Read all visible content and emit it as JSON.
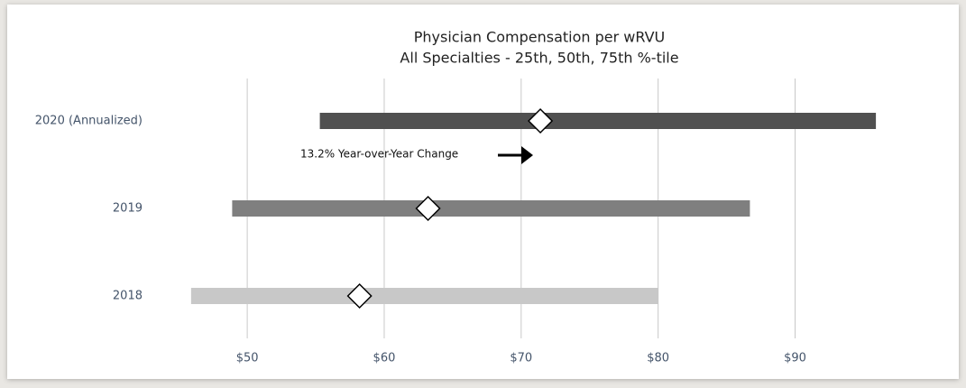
{
  "chart_data": {
    "type": "range_bar",
    "title": [
      "Physician Compensation per wRVU",
      "All Specialties - 25th, 50th, 75th %-tile"
    ],
    "categories": [
      "2020 (Annualized)",
      "2019",
      "2018"
    ],
    "low": [
      55.3,
      48.9,
      45.9
    ],
    "median": [
      71.4,
      63.2,
      58.2
    ],
    "high": [
      95.9,
      86.7,
      80.0
    ],
    "colors": [
      "#505050",
      "#7f7f7f",
      "#c8c8c8"
    ],
    "xlim": [
      44,
      98
    ],
    "xticks": [
      {
        "value": 50,
        "label": "$50"
      },
      {
        "value": 60,
        "label": "$60"
      },
      {
        "value": 70,
        "label": "$70"
      },
      {
        "value": 80,
        "label": "$80"
      },
      {
        "value": 90,
        "label": "$90"
      }
    ],
    "grid": true,
    "annotation": "13.2% Year-over-Year Change"
  }
}
